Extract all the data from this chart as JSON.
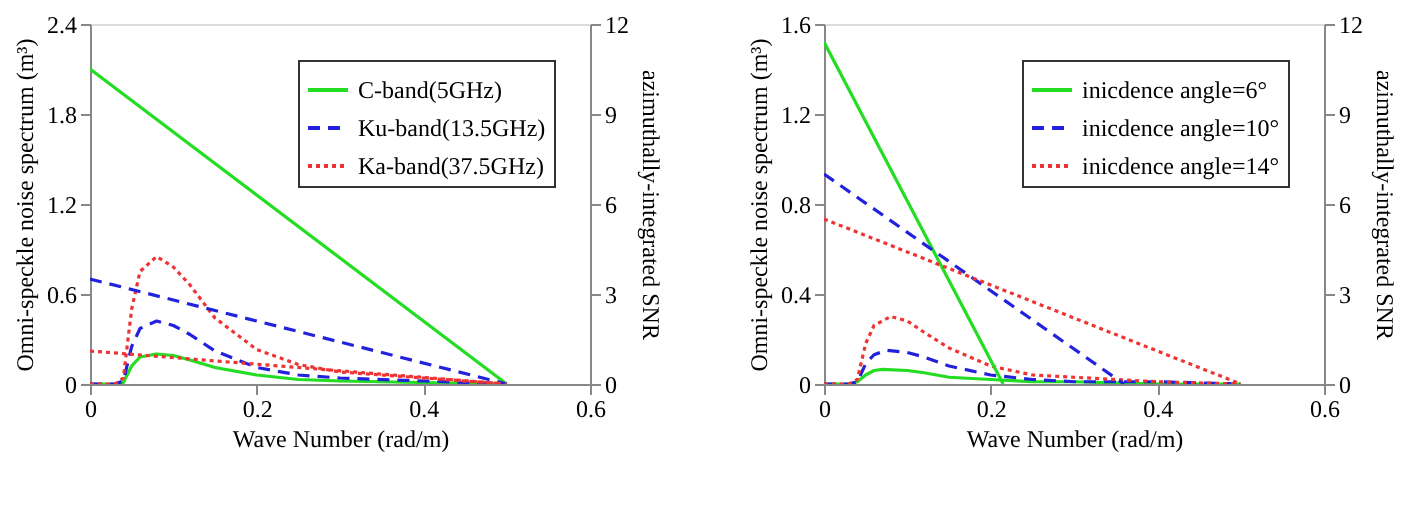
{
  "chart_data": [
    {
      "type": "line",
      "xlabel": "Wave Number (rad/m)",
      "ylabel": "Omni-speckle noise spectrum (m³)",
      "y2label": "azimuthally-integrated SNR",
      "xlim": [
        0,
        0.6
      ],
      "xticks": [
        0,
        0.2,
        0.4,
        0.6
      ],
      "ylim": [
        0,
        2.4
      ],
      "yticks": [
        0,
        0.6,
        1.2,
        1.8,
        2.4
      ],
      "y2lim": [
        0,
        12
      ],
      "y2ticks": [
        0,
        3,
        6,
        9,
        12
      ],
      "grid": false,
      "legend": "top right",
      "marker": "none",
      "series": [
        {
          "name": "C-band(5GHz)",
          "color": "#22dd22",
          "line_style": "solid",
          "x": [
            0,
            0.03,
            0.04,
            0.05,
            0.06,
            0.08,
            0.1,
            0.12,
            0.15,
            0.2,
            0.25,
            0.3,
            0.4,
            0.5
          ],
          "values": [
            0,
            0,
            0.01,
            0.12,
            0.18,
            0.2,
            0.19,
            0.16,
            0.11,
            0.06,
            0.03,
            0.02,
            0.01,
            0
          ]
        },
        {
          "name": "Ku-band(13.5GHz)",
          "color": "#2222dd",
          "line_style": "dashed",
          "x": [
            0,
            0.03,
            0.04,
            0.05,
            0.06,
            0.08,
            0.1,
            0.12,
            0.15,
            0.2,
            0.25,
            0.3,
            0.4,
            0.5
          ],
          "values": [
            0,
            0,
            0.02,
            0.25,
            0.37,
            0.42,
            0.39,
            0.33,
            0.22,
            0.11,
            0.06,
            0.04,
            0.02,
            0
          ]
        },
        {
          "name": "Ka-band(37.5GHz)",
          "color": "#ee3333",
          "line_style": "dotted",
          "x": [
            0,
            0.03,
            0.04,
            0.05,
            0.06,
            0.08,
            0.1,
            0.12,
            0.15,
            0.2,
            0.25,
            0.3,
            0.4,
            0.5
          ],
          "values": [
            0,
            0,
            0.04,
            0.5,
            0.75,
            0.85,
            0.78,
            0.66,
            0.44,
            0.23,
            0.13,
            0.08,
            0.04,
            0
          ]
        },
        {
          "color": "#22dd22",
          "line_style": "solid",
          "axis": "y2",
          "x": [
            0,
            0.5
          ],
          "values": [
            10.5,
            0
          ]
        },
        {
          "color": "#2222dd",
          "line_style": "dashed",
          "axis": "y2",
          "x": [
            0,
            0.5
          ],
          "values": [
            3.5,
            0
          ]
        },
        {
          "color": "#ee3333",
          "line_style": "dotted",
          "axis": "y2",
          "x": [
            0,
            0.5
          ],
          "values": [
            1.1,
            0
          ]
        }
      ]
    },
    {
      "type": "line",
      "xlabel": "Wave Number (rad/m)",
      "ylabel": "Omni-speckle noise spectrum (m³)",
      "y2label": "azimuthally-integrated SNR",
      "xlim": [
        0,
        0.6
      ],
      "xticks": [
        0,
        0.2,
        0.4,
        0.6
      ],
      "ylim": [
        0,
        1.6
      ],
      "yticks": [
        0,
        0.4,
        0.8,
        1.2,
        1.6
      ],
      "y2lim": [
        0,
        12
      ],
      "y2ticks": [
        0,
        3,
        6,
        9,
        12
      ],
      "grid": false,
      "legend": "top right",
      "marker": "none",
      "series": [
        {
          "name": "inicdence angle=6°",
          "color": "#22dd22",
          "line_style": "solid",
          "x": [
            0,
            0.03,
            0.04,
            0.05,
            0.06,
            0.07,
            0.1,
            0.12,
            0.15,
            0.2,
            0.25,
            0.3,
            0.4,
            0.5
          ],
          "values": [
            0,
            0,
            0.01,
            0.04,
            0.06,
            0.065,
            0.06,
            0.05,
            0.03,
            0.02,
            0.01,
            0.01,
            0,
            0
          ]
        },
        {
          "name": "inicdence angle=10°",
          "color": "#2222dd",
          "line_style": "dashed",
          "x": [
            0,
            0.03,
            0.04,
            0.05,
            0.06,
            0.075,
            0.1,
            0.12,
            0.15,
            0.2,
            0.25,
            0.3,
            0.4,
            0.5
          ],
          "values": [
            0,
            0,
            0.01,
            0.09,
            0.13,
            0.15,
            0.14,
            0.12,
            0.08,
            0.04,
            0.02,
            0.01,
            0.01,
            0
          ]
        },
        {
          "name": "inicdence angle=14°",
          "color": "#ee3333",
          "line_style": "dotted",
          "x": [
            0,
            0.03,
            0.04,
            0.05,
            0.06,
            0.08,
            0.1,
            0.12,
            0.15,
            0.2,
            0.25,
            0.3,
            0.4,
            0.5
          ],
          "values": [
            0,
            0,
            0.02,
            0.18,
            0.26,
            0.3,
            0.28,
            0.23,
            0.16,
            0.08,
            0.04,
            0.03,
            0.01,
            0
          ]
        },
        {
          "color": "#22dd22",
          "line_style": "solid",
          "axis": "y2",
          "x": [
            0,
            0.215
          ],
          "values": [
            11.4,
            0
          ]
        },
        {
          "color": "#2222dd",
          "line_style": "dashed",
          "axis": "y2",
          "x": [
            0,
            0.36
          ],
          "values": [
            7.0,
            0
          ]
        },
        {
          "color": "#ee3333",
          "line_style": "dotted",
          "axis": "y2",
          "x": [
            0,
            0.5
          ],
          "values": [
            5.5,
            0
          ]
        }
      ]
    }
  ]
}
